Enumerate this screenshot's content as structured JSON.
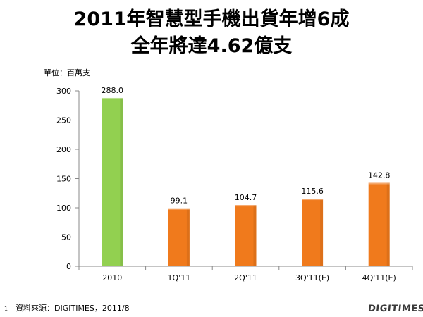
{
  "header": {
    "title_line1": "2011年智慧型手機出貨年增6成",
    "title_line2": "全年將達4.62億支"
  },
  "unit_label": "單位：百萬支",
  "footer": {
    "page_number": "1",
    "source": "資料來源：DIGITIMES，2011/8",
    "logo_text": "DIGITIMES"
  },
  "colors": {
    "highlight_bar": "#92d050",
    "bar": "#f07a1c",
    "axis": "#888888"
  },
  "chart_data": {
    "type": "bar",
    "categories": [
      "2010",
      "1Q'11",
      "2Q'11",
      "3Q'11(E)",
      "4Q'11(E)"
    ],
    "values": [
      288.0,
      99.1,
      104.7,
      115.6,
      142.8
    ],
    "data_labels": [
      "288.0",
      "99.1",
      "104.7",
      "115.6",
      "142.8"
    ],
    "bar_colors": [
      "#92d050",
      "#f07a1c",
      "#f07a1c",
      "#f07a1c",
      "#f07a1c"
    ],
    "yticks": [
      0,
      50,
      100,
      150,
      200,
      250,
      300
    ],
    "ylim": [
      0,
      300
    ],
    "title": "2011年智慧型手機出貨年增6成 全年將達4.62億支",
    "xlabel": "",
    "ylabel": "單位：百萬支",
    "grid": false,
    "legend": false
  }
}
